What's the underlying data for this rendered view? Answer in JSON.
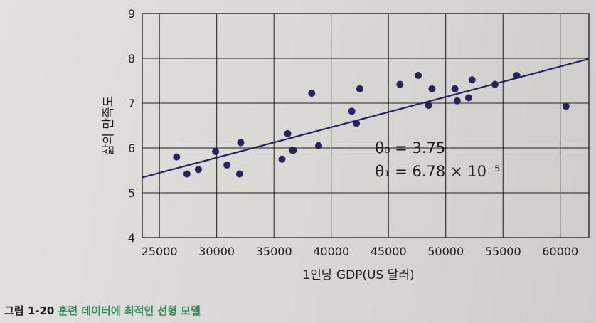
{
  "caption": {
    "label": "그림 1-20",
    "title": "훈련 데이터에 최적인 선형 모델"
  },
  "colors": {
    "points": "#26245e",
    "line": "#26245e",
    "grid": "#1c1c1c"
  },
  "chart_data": {
    "type": "scatter",
    "title": "",
    "xlabel": "1인당 GDP(US 달러)",
    "ylabel": "삶의 만족도",
    "xlim": [
      23500,
      62500
    ],
    "ylim": [
      4,
      9
    ],
    "x_ticks": [
      25000,
      30000,
      35000,
      40000,
      45000,
      50000,
      55000,
      60000
    ],
    "x_tick_labels": [
      "25000",
      "30000",
      "35000",
      "40000",
      "45000",
      "50000",
      "55000",
      "60000"
    ],
    "y_ticks": [
      4,
      5,
      6,
      7,
      8,
      9
    ],
    "y_tick_labels": [
      "4",
      "5",
      "6",
      "7",
      "8",
      "9"
    ],
    "grid": true,
    "series": [
      {
        "points": [
          [
            26500,
            5.8
          ],
          [
            27400,
            5.42
          ],
          [
            28400,
            5.52
          ],
          [
            29900,
            5.92
          ],
          [
            30900,
            5.62
          ],
          [
            32000,
            5.42
          ],
          [
            32100,
            6.12
          ],
          [
            35700,
            5.75
          ],
          [
            36200,
            6.32
          ],
          [
            36600,
            5.95
          ],
          [
            36700,
            5.95
          ],
          [
            38300,
            7.22
          ],
          [
            38900,
            6.05
          ],
          [
            41800,
            6.82
          ],
          [
            42200,
            6.55
          ],
          [
            42500,
            7.32
          ],
          [
            46000,
            7.42
          ],
          [
            47600,
            7.62
          ],
          [
            48500,
            6.95
          ],
          [
            48800,
            7.32
          ],
          [
            50800,
            7.32
          ],
          [
            51000,
            7.05
          ],
          [
            52000,
            7.12
          ],
          [
            52300,
            7.52
          ],
          [
            54300,
            7.42
          ],
          [
            56200,
            7.62
          ],
          [
            60500,
            6.93
          ]
        ]
      },
      {
        "type": "line",
        "points": [
          [
            23500,
            5.343
          ],
          [
            62500,
            7.988
          ]
        ]
      }
    ],
    "annotations": [
      {
        "text": "θ₀ = 3.75",
        "x": 46000,
        "y": 6.0
      },
      {
        "text": "θ₁ = 6.78 × 10⁻⁵",
        "x": 46000,
        "y": 5.48
      }
    ]
  }
}
